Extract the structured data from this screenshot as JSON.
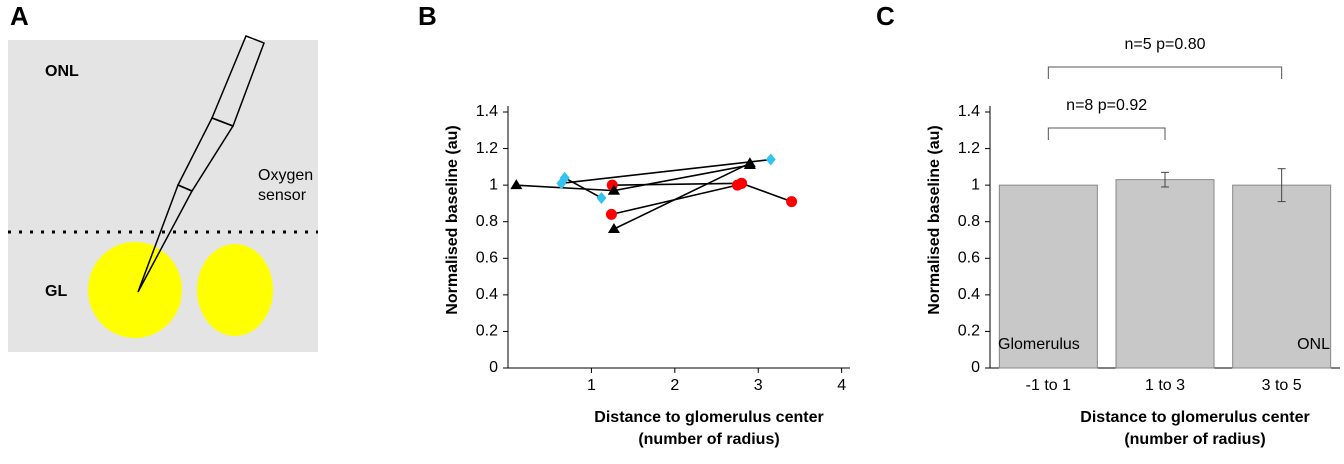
{
  "panel_labels": [
    "A",
    "B",
    "C"
  ],
  "diagram": {
    "labels": {
      "onl": "ONL",
      "gl": "GL",
      "sensor": [
        "Oxygen",
        "sensor"
      ]
    }
  },
  "chart_data": [
    {
      "type": "line",
      "y_label": "Normalised baseline (au)",
      "x_label": [
        "Distance to glomerulus center",
        "(number of radius)"
      ],
      "xlim": [
        0,
        4.1
      ],
      "xticks": [
        1,
        2,
        3,
        4
      ],
      "ylim": [
        0,
        1.4
      ],
      "yticks": [
        0,
        0.2,
        0.4,
        0.6,
        0.8,
        1,
        1.2,
        1.4
      ],
      "line_color": "#000000",
      "series": [
        {
          "marker": "triangle",
          "color": "#000000",
          "x": [
            0.1,
            1.27
          ],
          "values": [
            1.0,
            0.97
          ]
        },
        {
          "marker": "diamond",
          "color": "#33c3f0",
          "x": [
            0.64,
            3.15
          ],
          "values": [
            1.01,
            1.14
          ]
        },
        {
          "marker": "diamond",
          "color": "#33c3f0",
          "x": [
            0.68,
            1.12
          ],
          "values": [
            1.04,
            0.93
          ]
        },
        {
          "marker": "circle",
          "color": "#ff0000",
          "x": [
            1.25,
            2.8
          ],
          "values": [
            1.0,
            1.01
          ]
        },
        {
          "marker": "circle",
          "color": "#ff0000",
          "x": [
            1.24,
            2.75
          ],
          "values": [
            0.84,
            1.0
          ]
        },
        {
          "marker": "triangle",
          "color": "#000000",
          "x": [
            1.27,
            2.9
          ],
          "values": [
            0.76,
            1.12
          ]
        },
        {
          "marker": "circle",
          "color": "#ff0000",
          "x": [
            2.8,
            3.4
          ],
          "values": [
            1.01,
            0.91
          ]
        },
        {
          "marker": "triangle",
          "color": "#000000",
          "x": [
            1.27,
            2.9
          ],
          "values": [
            0.97,
            1.11
          ]
        }
      ]
    },
    {
      "type": "bar",
      "y_label": "Normalised baseline (au)",
      "x_label": [
        "Distance to glomerulus center",
        "(number of radius)"
      ],
      "categories": [
        "-1 to 1",
        "1 to 3",
        "3 to 5"
      ],
      "values": [
        1.0,
        1.03,
        1.0
      ],
      "errors": [
        0,
        0.04,
        0.09
      ],
      "color": "#c8c8c8",
      "ylim": [
        0,
        1.4
      ],
      "yticks": [
        0,
        0.2,
        0.4,
        0.6,
        0.8,
        1,
        1.2,
        1.4
      ],
      "annotations": {
        "left": "Glomerulus",
        "right": "ONL",
        "bracket_1": "n=8 p=0.92",
        "bracket_2": "n=5 p=0.80"
      }
    }
  ]
}
